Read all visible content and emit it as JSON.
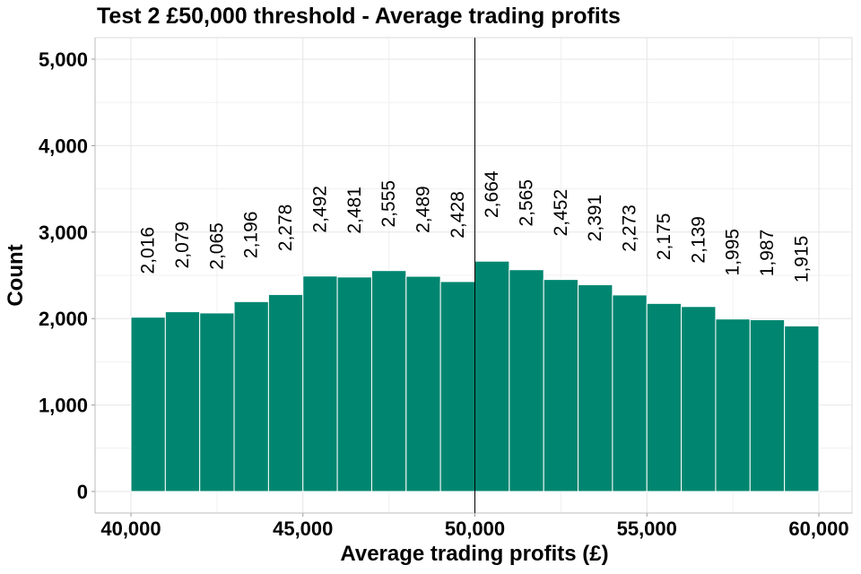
{
  "chart_data": {
    "type": "bar",
    "title": "Test 2 £50,000 threshold - Average trading profits",
    "xlabel": "Average trading profits (£)",
    "ylabel": "Count",
    "bin_edges": [
      40000,
      41000,
      42000,
      43000,
      44000,
      45000,
      46000,
      47000,
      48000,
      49000,
      50000,
      51000,
      52000,
      53000,
      54000,
      55000,
      56000,
      57000,
      58000,
      59000,
      60000
    ],
    "values": [
      2016,
      2079,
      2065,
      2196,
      2278,
      2492,
      2481,
      2555,
      2489,
      2428,
      2664,
      2565,
      2452,
      2391,
      2273,
      2175,
      2139,
      1995,
      1987,
      1915
    ],
    "data_labels": [
      "2,016",
      "2,079",
      "2,065",
      "2,196",
      "2,278",
      "2,492",
      "2,481",
      "2,555",
      "2,489",
      "2,428",
      "2,664",
      "2,565",
      "2,452",
      "2,391",
      "2,273",
      "2,175",
      "2,139",
      "1,995",
      "1,987",
      "1,915"
    ],
    "xlim": [
      37500,
      61000
    ],
    "ylim": [
      -250,
      5250
    ],
    "x_ticks": [
      40000,
      45000,
      50000,
      55000,
      60000
    ],
    "x_tick_labels": [
      "40,000",
      "45,000",
      "50,000",
      "55,000",
      "60,000"
    ],
    "y_ticks": [
      0,
      1000,
      2000,
      3000,
      4000,
      5000
    ],
    "y_tick_labels": [
      "0",
      "1,000",
      "2,000",
      "3,000",
      "4,000",
      "5,000"
    ],
    "threshold_line": 50000,
    "grid": true,
    "bar_color": "#008670"
  }
}
